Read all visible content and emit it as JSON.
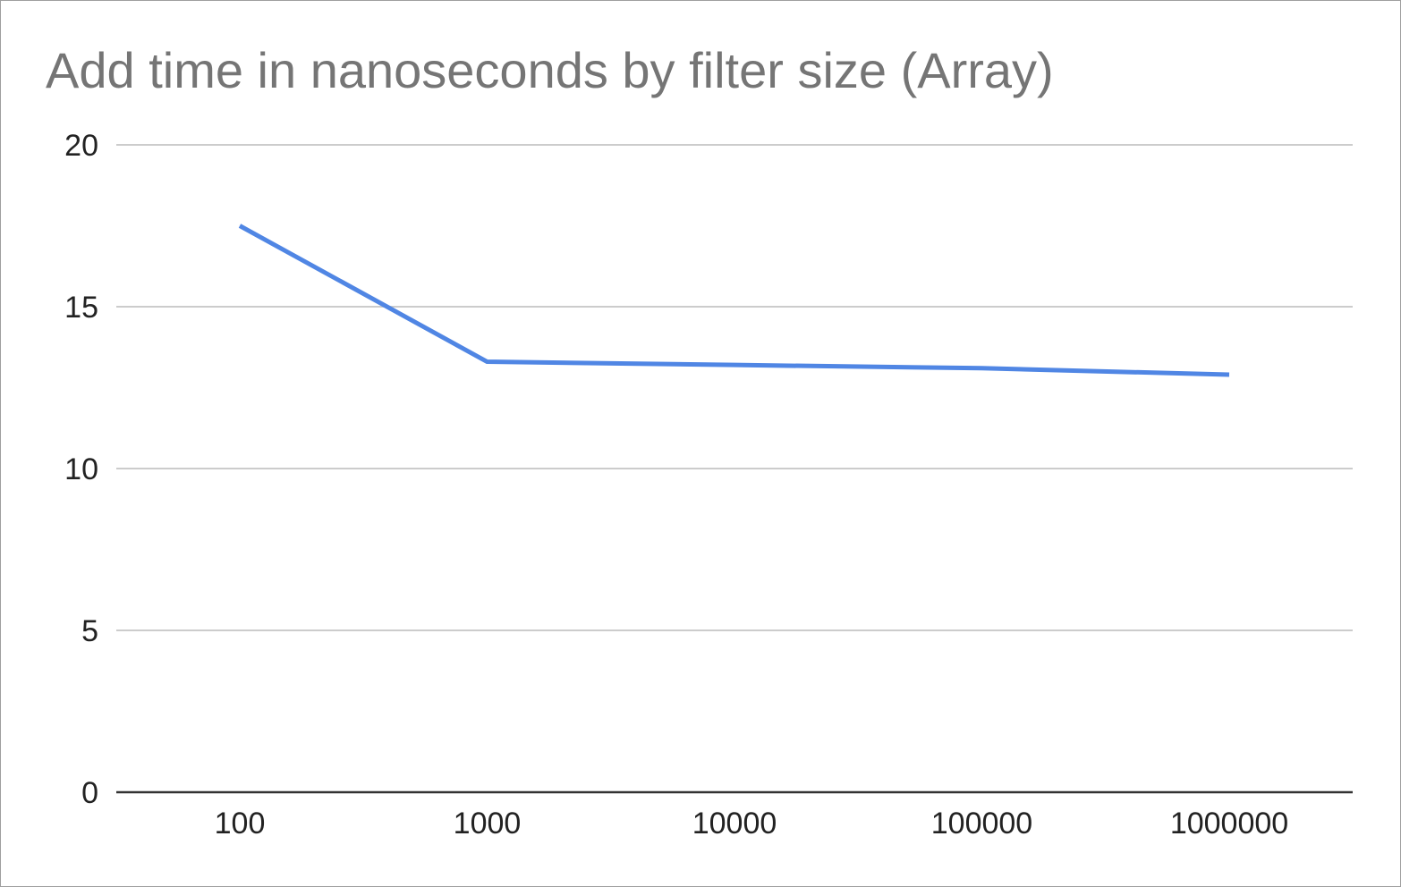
{
  "chart_data": {
    "type": "line",
    "title": "Add time in nanoseconds by filter size (Array)",
    "xlabel": "",
    "ylabel": "",
    "categories": [
      "100",
      "1000",
      "10000",
      "100000",
      "1000000"
    ],
    "series": [
      {
        "values": [
          17.5,
          13.3,
          13.2,
          13.1,
          12.9
        ],
        "color": "#5086e4"
      }
    ],
    "ylim": [
      0,
      20
    ],
    "yticks": [
      0,
      5,
      10,
      15,
      20
    ],
    "grid": true,
    "legend": "none"
  },
  "colors": {
    "title": "#757575",
    "gridline": "#cccccc",
    "baseline": "#333333",
    "series": "#5086e4"
  }
}
